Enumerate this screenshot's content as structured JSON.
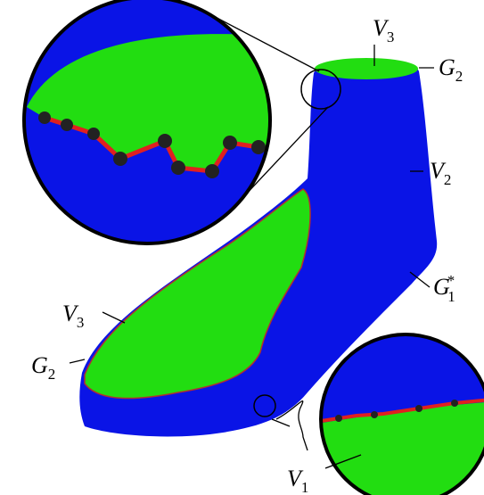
{
  "labels": [
    {
      "symbol": "V",
      "subscript": "3"
    },
    {
      "symbol": "G",
      "subscript": "2"
    },
    {
      "symbol": "V",
      "subscript": "2"
    },
    {
      "symbol": "G",
      "subscript": "1",
      "superscript": "*"
    },
    {
      "symbol": "V",
      "subscript": "3"
    },
    {
      "symbol": "G",
      "subscript": "2"
    },
    {
      "symbol": "V",
      "subscript": "1"
    }
  ]
}
